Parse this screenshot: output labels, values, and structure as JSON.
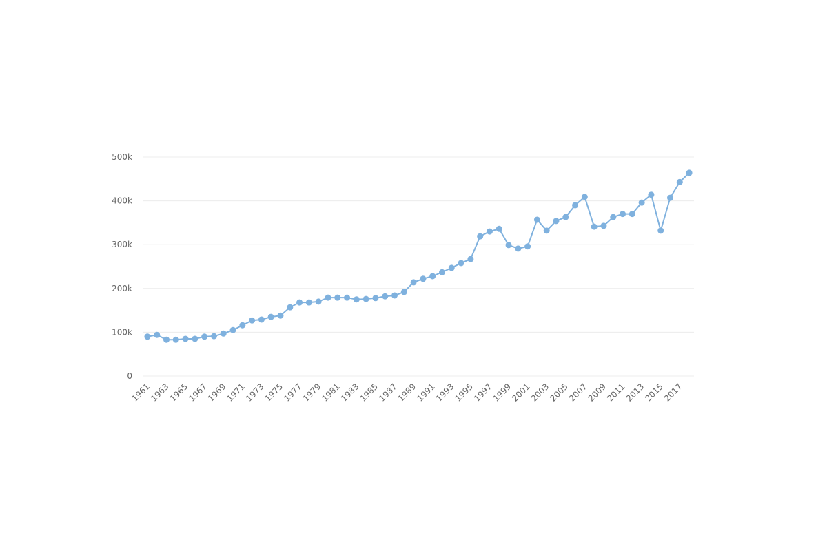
{
  "chart_data": {
    "type": "line",
    "categories": [
      "1961",
      null,
      "1963",
      null,
      "1965",
      null,
      "1967",
      null,
      "1969",
      null,
      "1971",
      null,
      "1973",
      null,
      "1975",
      null,
      "1977",
      null,
      "1979",
      null,
      "1981",
      null,
      "1983",
      null,
      "1985",
      null,
      "1987",
      null,
      "1989",
      null,
      "1991",
      null,
      "1993",
      null,
      "1995",
      null,
      "1997",
      null,
      "1999",
      null,
      "2001",
      null,
      "2003",
      null,
      "2005",
      null,
      "2007",
      null,
      "2009",
      null,
      "2011",
      null,
      "2013",
      null,
      "2015",
      null,
      "2017",
      null
    ],
    "values": [
      90000,
      94000,
      83000,
      83000,
      85000,
      85000,
      90000,
      91000,
      97000,
      105000,
      116000,
      127000,
      129000,
      135000,
      138000,
      157000,
      168000,
      168000,
      170000,
      179000,
      179000,
      179000,
      175000,
      176000,
      178000,
      182000,
      184000,
      192000,
      214000,
      222000,
      228000,
      237000,
      247000,
      258000,
      267000,
      319000,
      330000,
      336000,
      299000,
      291000,
      296000,
      357000,
      332000,
      354000,
      363000,
      390000,
      409000,
      341000,
      343000,
      363000,
      370000,
      370000,
      396000,
      414000,
      332000,
      407000,
      443000,
      464000
    ],
    "color": "#7fb1de",
    "ylim": [
      0,
      500000
    ],
    "yticks": [
      {
        "value": 0,
        "label": "0"
      },
      {
        "value": 100000,
        "label": "100k"
      },
      {
        "value": 200000,
        "label": "200k"
      },
      {
        "value": 300000,
        "label": "300k"
      },
      {
        "value": 400000,
        "label": "400k"
      },
      {
        "value": 500000,
        "label": "500k"
      }
    ],
    "grid": true
  }
}
